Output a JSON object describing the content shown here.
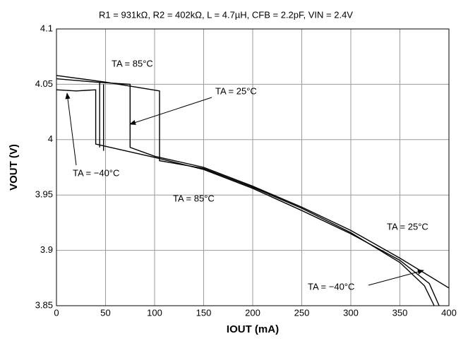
{
  "chart_data": {
    "type": "line",
    "subtitle": "R1 = 931kΩ,  R2 = 402kΩ,  L = 4.7µH,  CFB = 2.2pF,  VIN = 2.4V",
    "xlabel": "IOUT (mA)",
    "ylabel": "VOUT (V)",
    "xlim": [
      0,
      400
    ],
    "ylim": [
      3.85,
      4.1
    ],
    "xticks": [
      0,
      50,
      100,
      150,
      200,
      250,
      300,
      350,
      400
    ],
    "yticks": [
      3.85,
      3.9,
      3.95,
      4,
      4.05,
      4.1
    ],
    "grid": true,
    "series": [
      {
        "name": "TA = 85°C",
        "color": "#000000",
        "x": [
          0,
          50,
          105,
          105,
          150,
          200,
          250,
          300,
          350,
          375,
          385,
          null,
          48,
          48
        ],
        "values": [
          4.058,
          4.052,
          4.044,
          3.981,
          3.974,
          3.957,
          3.938,
          3.916,
          3.889,
          3.868,
          3.85,
          null,
          3.99,
          4.05
        ]
      },
      {
        "name": "TA = 25°C",
        "color": "#000000",
        "x": [
          0,
          40,
          75,
          75,
          100,
          150,
          200,
          250,
          300,
          350,
          400,
          null,
          44,
          44
        ],
        "values": [
          4.055,
          4.052,
          4.05,
          3.993,
          3.985,
          3.975,
          3.958,
          3.939,
          3.918,
          3.893,
          3.866,
          null,
          3.993,
          4.052
        ]
      },
      {
        "name": "TA = −40°C",
        "color": "#000000",
        "x": [
          0,
          20,
          40,
          40,
          100,
          150,
          200,
          250,
          300,
          350,
          380,
          390
        ],
        "values": [
          4.045,
          4.044,
          4.045,
          3.996,
          3.984,
          3.973,
          3.956,
          3.936,
          3.915,
          3.891,
          3.87,
          3.85
        ]
      }
    ],
    "annotations": [
      "TA = 85°C",
      "TA = 25°C",
      "TA = −40°C",
      "TA = 85°C",
      "TA = 25°C",
      "TA = −40°C"
    ]
  }
}
